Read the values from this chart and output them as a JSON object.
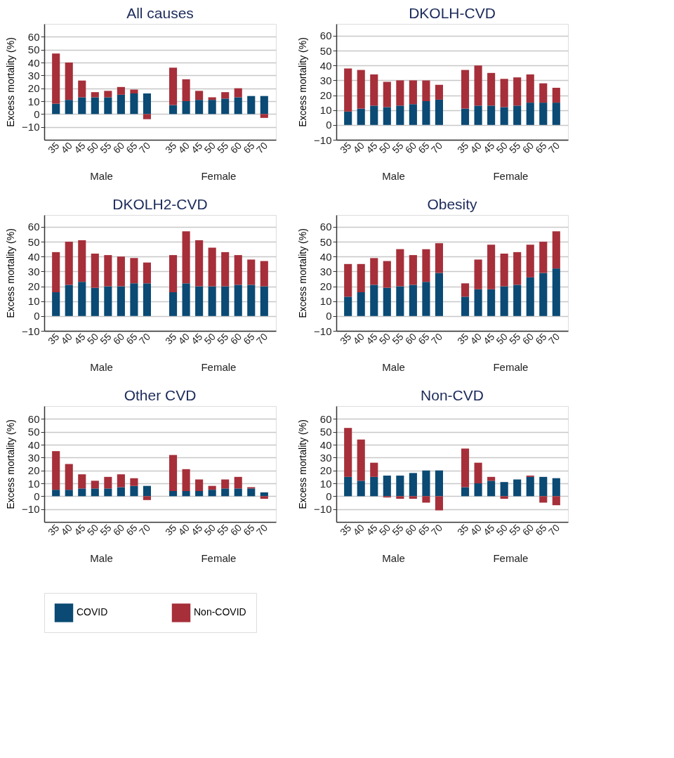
{
  "chart_data": [
    {
      "type": "bar",
      "stacked": true,
      "title": "All causes",
      "ylabel": "Excess mortality (%)",
      "categories": [
        "35",
        "40",
        "45",
        "50",
        "55",
        "60",
        "65",
        "70",
        "35",
        "40",
        "45",
        "50",
        "55",
        "60",
        "65",
        "70"
      ],
      "annotations": [
        "Male",
        "Female"
      ],
      "ylim": [
        -20,
        70
      ],
      "yticks": [
        -10,
        0,
        10,
        20,
        30,
        40,
        50,
        60
      ],
      "grid": "y",
      "legend": "bottom",
      "series": [
        {
          "name": "COVID",
          "color": "#0a4a74",
          "values": [
            8,
            11,
            13,
            13,
            13,
            15,
            16,
            16,
            7,
            10,
            11,
            11,
            12,
            13,
            14,
            14
          ]
        },
        {
          "name": "Non-COVID",
          "color": "#a62f3a",
          "values": [
            39,
            29,
            13,
            4,
            5,
            6,
            3,
            -4,
            29,
            17,
            7,
            2,
            5,
            7,
            0,
            -3
          ]
        }
      ]
    },
    {
      "type": "bar",
      "stacked": true,
      "title": "DKOLH-CVD",
      "ylabel": "Excess mortality (%)",
      "categories": [
        "35",
        "40",
        "45",
        "50",
        "55",
        "60",
        "65",
        "70",
        "35",
        "40",
        "45",
        "50",
        "55",
        "60",
        "65",
        "70"
      ],
      "annotations": [
        "Male",
        "Female"
      ],
      "ylim": [
        -10,
        68
      ],
      "yticks": [
        -10,
        0,
        10,
        20,
        30,
        40,
        50,
        60
      ],
      "grid": "y",
      "legend": "bottom",
      "series": [
        {
          "name": "COVID",
          "color": "#0a4a74",
          "values": [
            9,
            11,
            13,
            12,
            13,
            14,
            16,
            17,
            11,
            13,
            13,
            12,
            13,
            15,
            15,
            15
          ]
        },
        {
          "name": "Non-COVID",
          "color": "#a62f3a",
          "values": [
            29,
            26,
            21,
            17,
            17,
            16,
            14,
            10,
            26,
            27,
            22,
            19,
            19,
            19,
            13,
            10
          ]
        }
      ]
    },
    {
      "type": "bar",
      "stacked": true,
      "title": "DKOLH2-CVD",
      "ylabel": "Excess mortality (%)",
      "categories": [
        "35",
        "40",
        "45",
        "50",
        "55",
        "60",
        "65",
        "70",
        "35",
        "40",
        "45",
        "50",
        "55",
        "60",
        "65",
        "70"
      ],
      "annotations": [
        "Male",
        "Female"
      ],
      "ylim": [
        -10,
        68
      ],
      "yticks": [
        -10,
        0,
        10,
        20,
        30,
        40,
        50,
        60
      ],
      "grid": "y",
      "legend": "bottom",
      "series": [
        {
          "name": "COVID",
          "color": "#0a4a74",
          "values": [
            16,
            21,
            23,
            19,
            20,
            20,
            22,
            22,
            16,
            22,
            20,
            20,
            20,
            21,
            21,
            20
          ]
        },
        {
          "name": "Non-COVID",
          "color": "#a62f3a",
          "values": [
            27,
            29,
            28,
            23,
            21,
            20,
            17,
            14,
            25,
            35,
            31,
            26,
            23,
            20,
            17,
            17
          ]
        }
      ]
    },
    {
      "type": "bar",
      "stacked": true,
      "title": "Obesity",
      "ylabel": "Excess mortality (%)",
      "categories": [
        "35",
        "40",
        "45",
        "50",
        "55",
        "60",
        "65",
        "70",
        "35",
        "40",
        "45",
        "50",
        "55",
        "60",
        "65",
        "70"
      ],
      "annotations": [
        "Male",
        "Female"
      ],
      "ylim": [
        -10,
        68
      ],
      "yticks": [
        -10,
        0,
        10,
        20,
        30,
        40,
        50,
        60
      ],
      "grid": "y",
      "legend": "bottom",
      "series": [
        {
          "name": "COVID",
          "color": "#0a4a74",
          "values": [
            13,
            16,
            21,
            19,
            20,
            21,
            23,
            29,
            13,
            18,
            18,
            20,
            21,
            26,
            29,
            32
          ]
        },
        {
          "name": "Non-COVID",
          "color": "#a62f3a",
          "values": [
            22,
            19,
            18,
            18,
            25,
            20,
            22,
            20,
            9,
            20,
            30,
            22,
            22,
            22,
            21,
            25
          ]
        }
      ]
    },
    {
      "type": "bar",
      "stacked": true,
      "title": "Other CVD",
      "ylabel": "Excess mortality (%)",
      "categories": [
        "35",
        "40",
        "45",
        "50",
        "55",
        "60",
        "65",
        "70",
        "35",
        "40",
        "45",
        "50",
        "55",
        "60",
        "65",
        "70"
      ],
      "annotations": [
        "Male",
        "Female"
      ],
      "ylim": [
        -20,
        70
      ],
      "yticks": [
        -10,
        0,
        10,
        20,
        30,
        40,
        50,
        60
      ],
      "grid": "y",
      "legend": "bottom",
      "series": [
        {
          "name": "COVID",
          "color": "#0a4a74",
          "values": [
            5,
            5,
            6,
            6,
            6,
            7,
            8,
            8,
            4,
            4,
            4,
            5,
            6,
            6,
            6,
            3
          ]
        },
        {
          "name": "Non-COVID",
          "color": "#a62f3a",
          "values": [
            30,
            20,
            11,
            6,
            9,
            10,
            6,
            -3,
            28,
            17,
            9,
            3,
            7,
            9,
            1,
            -2
          ]
        }
      ]
    },
    {
      "type": "bar",
      "stacked": true,
      "title": "Non-CVD",
      "ylabel": "Excess mortality (%)",
      "categories": [
        "35",
        "40",
        "45",
        "50",
        "55",
        "60",
        "65",
        "70",
        "35",
        "40",
        "45",
        "50",
        "55",
        "60",
        "65",
        "70"
      ],
      "annotations": [
        "Male",
        "Female"
      ],
      "ylim": [
        -20,
        70
      ],
      "yticks": [
        -10,
        0,
        10,
        20,
        30,
        40,
        50,
        60
      ],
      "grid": "y",
      "legend": "bottom",
      "series": [
        {
          "name": "COVID",
          "color": "#0a4a74",
          "values": [
            15,
            12,
            15,
            16,
            16,
            18,
            20,
            20,
            7,
            10,
            12,
            11,
            13,
            15,
            15,
            14
          ]
        },
        {
          "name": "Non-COVID",
          "color": "#a62f3a",
          "values": [
            38,
            32,
            11,
            -1,
            -2,
            -2,
            -5,
            -11,
            30,
            16,
            3,
            -2,
            0,
            1,
            -5,
            -7
          ]
        }
      ]
    }
  ]
}
